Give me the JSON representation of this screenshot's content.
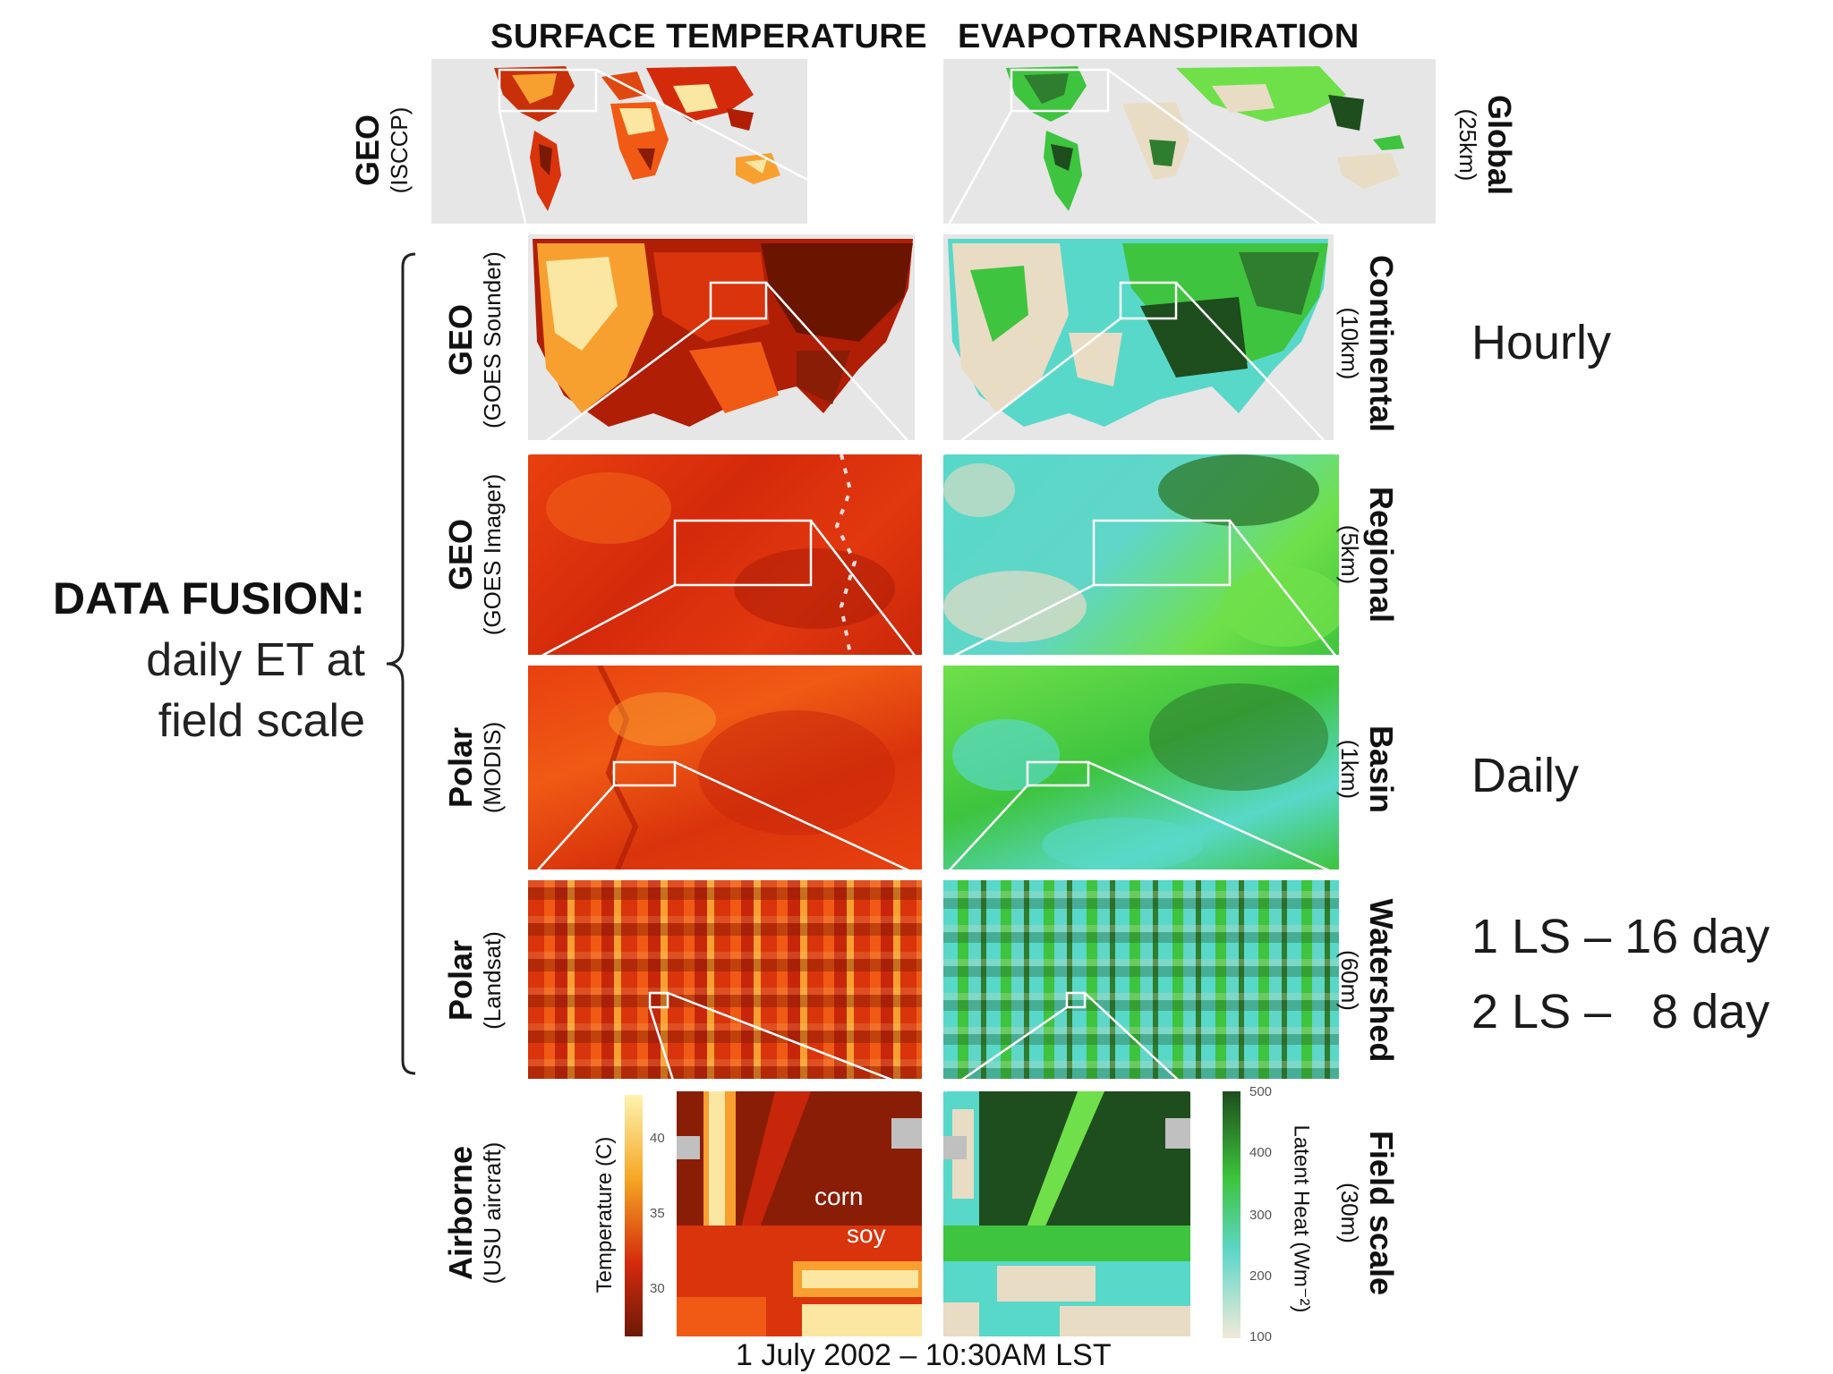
{
  "columns": {
    "left": "SURFACE TEMPERATURE",
    "right": "EVAPOTRANSPIRATION"
  },
  "rows": [
    {
      "platform": "GEO",
      "sensor": "(ISCCP)",
      "scale": "Global",
      "resolution": "(25km)"
    },
    {
      "platform": "GEO",
      "sensor": "(GOES Sounder)",
      "scale": "Continental",
      "resolution": "(10km)"
    },
    {
      "platform": "GEO",
      "sensor": "(GOES Imager)",
      "scale": "Regional",
      "resolution": "(5km)"
    },
    {
      "platform": "Polar",
      "sensor": "(MODIS)",
      "scale": "Basin",
      "resolution": "(1km)"
    },
    {
      "platform": "Polar",
      "sensor": "(Landsat)",
      "scale": "Watershed",
      "resolution": "(60m)"
    },
    {
      "platform": "Airborne",
      "sensor": "(USU aircraft)",
      "scale": "Field scale",
      "resolution": "(30m)"
    }
  ],
  "frequency": {
    "hourly": "Hourly",
    "daily": "Daily",
    "landsat_one": "1 LS – 16 day",
    "landsat_two": "2 LS –   8 day"
  },
  "fusion": {
    "title": "DATA FUSION:",
    "line1": "daily ET at",
    "line2": "field scale"
  },
  "temperature_colorbar": {
    "label": "Temperature (C)",
    "ticks": [
      "40",
      "35",
      "30"
    ],
    "colors": [
      "#fff3b0",
      "#f5a623",
      "#d42a0c",
      "#6b1a08"
    ]
  },
  "latent_colorbar": {
    "label": "Latent Heat (Wm⁻²)",
    "ticks": [
      "500",
      "400",
      "300",
      "200",
      "100"
    ],
    "colors": [
      "#1e4d1e",
      "#3cc43c",
      "#5fd6c8",
      "#f2ead8"
    ]
  },
  "field_annotations": {
    "corn": "corn",
    "soy": "soy"
  },
  "footer": "1 July 2002 – 10:30AM LST",
  "palette": {
    "hot": [
      "#6b1400",
      "#b01e06",
      "#d9340c",
      "#f05a14",
      "#f7a030",
      "#fbe7a2"
    ],
    "et": [
      "#1e4d1e",
      "#2f7d2f",
      "#3ec43e",
      "#6fe04a",
      "#58d8c8",
      "#e9dcc4"
    ],
    "ocean": "#e6e6e6"
  }
}
